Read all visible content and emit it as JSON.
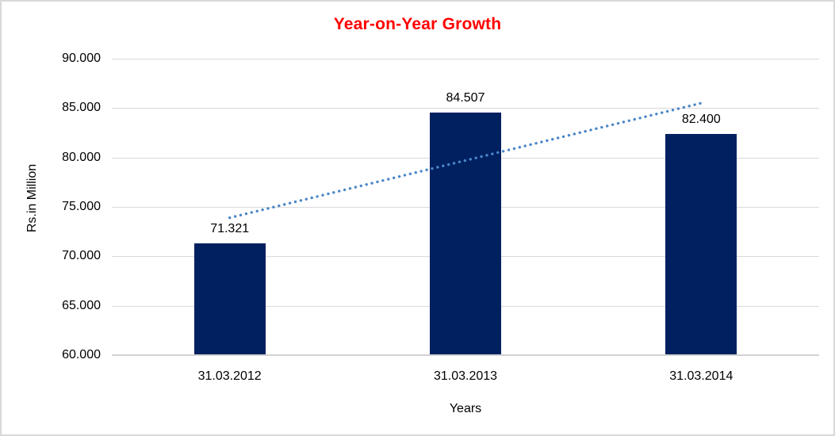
{
  "chart_data": {
    "type": "bar",
    "title": "Year-on-Year Growth",
    "xlabel": "Years",
    "ylabel": "Rs.in Million",
    "categories": [
      "31.03.2012",
      "31.03.2013",
      "31.03.2014"
    ],
    "values": [
      71.321,
      84.507,
      82.4
    ],
    "value_labels": [
      "71.321",
      "84.507",
      "82.400"
    ],
    "ylim": [
      60,
      90
    ],
    "yticks": [
      60,
      65,
      70,
      75,
      80,
      85,
      90
    ],
    "ytick_labels": [
      "60.000",
      "65.000",
      "70.000",
      "75.000",
      "80.000",
      "85.000",
      "90.000"
    ],
    "grid": true,
    "legend": false,
    "trendline": {
      "style": "dotted",
      "color": "#4A86C8",
      "start": {
        "category_index": 0,
        "value": 73.9
      },
      "end": {
        "category_index": 2,
        "value": 85.5
      }
    },
    "colors": {
      "bar": "#002060",
      "title": "#FF0000",
      "axis_text": "#000000",
      "gridline": "#D9D9D9",
      "axis_line": "#D3D3D3",
      "background": "#FFFFFF",
      "border": "#D9D9D9"
    }
  }
}
